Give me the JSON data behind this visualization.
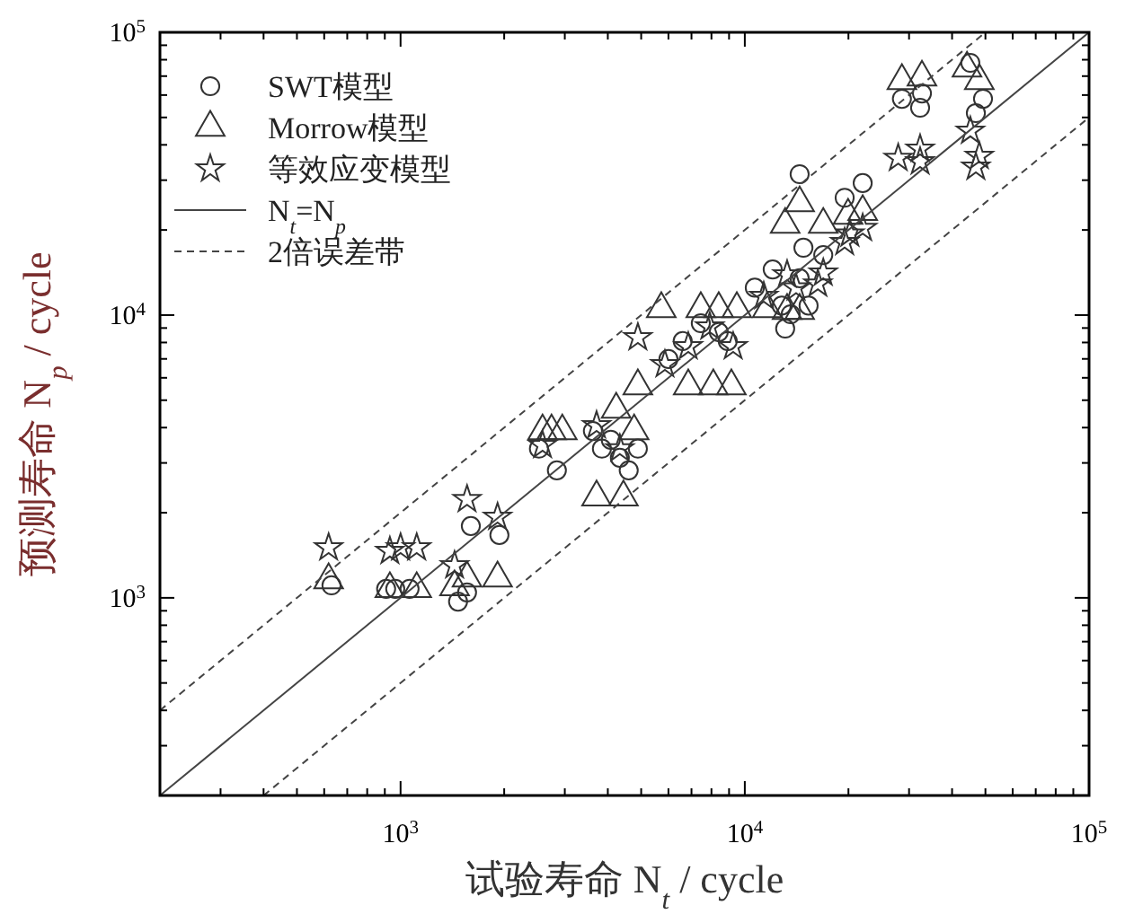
{
  "chart_data": {
    "type": "scatter",
    "xlabel": "试验寿命 N$_{t}$ / cycle",
    "ylabel": "预测寿命 N$_{p}$ / cycle",
    "log": "xy",
    "grid": false,
    "legend": "top left",
    "xlim": [
      200,
      100000
    ],
    "ylim": [
      200,
      100000
    ],
    "xticks": [
      {
        "value": 200,
        "label": null
      },
      {
        "value": 300,
        "label": null
      },
      {
        "value": 400,
        "label": null
      },
      {
        "value": 500,
        "label": null
      },
      {
        "value": 600,
        "label": null
      },
      {
        "value": 700,
        "label": null
      },
      {
        "value": 800,
        "label": null
      },
      {
        "value": 900,
        "label": null
      },
      {
        "value": 1000,
        "label": "10$^{3}$"
      },
      {
        "value": 2000,
        "label": null
      },
      {
        "value": 3000,
        "label": null
      },
      {
        "value": 4000,
        "label": null
      },
      {
        "value": 5000,
        "label": null
      },
      {
        "value": 6000,
        "label": null
      },
      {
        "value": 7000,
        "label": null
      },
      {
        "value": 8000,
        "label": null
      },
      {
        "value": 9000,
        "label": null
      },
      {
        "value": 10000,
        "label": "10$^{4}$"
      },
      {
        "value": 20000,
        "label": null
      },
      {
        "value": 30000,
        "label": null
      },
      {
        "value": 40000,
        "label": null
      },
      {
        "value": 50000,
        "label": null
      },
      {
        "value": 60000,
        "label": null
      },
      {
        "value": 70000,
        "label": null
      },
      {
        "value": 80000,
        "label": null
      },
      {
        "value": 90000,
        "label": null
      },
      {
        "value": 100000,
        "label": "10$^{5}$"
      }
    ],
    "yticks": [
      {
        "value": 200,
        "label": null
      },
      {
        "value": 300,
        "label": null
      },
      {
        "value": 400,
        "label": null
      },
      {
        "value": 500,
        "label": null
      },
      {
        "value": 600,
        "label": null
      },
      {
        "value": 700,
        "label": null
      },
      {
        "value": 800,
        "label": null
      },
      {
        "value": 900,
        "label": null
      },
      {
        "value": 1000,
        "label": "10$^{3}$"
      },
      {
        "value": 2000,
        "label": null
      },
      {
        "value": 3000,
        "label": null
      },
      {
        "value": 4000,
        "label": null
      },
      {
        "value": 5000,
        "label": null
      },
      {
        "value": 6000,
        "label": null
      },
      {
        "value": 7000,
        "label": null
      },
      {
        "value": 8000,
        "label": null
      },
      {
        "value": 9000,
        "label": null
      },
      {
        "value": 10000,
        "label": "10$^{4}$"
      },
      {
        "value": 20000,
        "label": null
      },
      {
        "value": 30000,
        "label": null
      },
      {
        "value": 40000,
        "label": null
      },
      {
        "value": 50000,
        "label": null
      },
      {
        "value": 60000,
        "label": null
      },
      {
        "value": 70000,
        "label": null
      },
      {
        "value": 80000,
        "label": null
      },
      {
        "value": 90000,
        "label": null
      },
      {
        "value": 100000,
        "label": "10$^{5}$"
      }
    ],
    "series": [
      {
        "name": "SWT模型",
        "type": "scatter",
        "marker": "circle",
        "color": "#333333",
        "x": [
          630,
          908,
          965,
          1062,
          1469,
          1560,
          1600,
          1937,
          2523,
          2845,
          3620,
          3845,
          4080,
          4335,
          4600,
          4890,
          6000,
          6600,
          7450,
          8400,
          8920,
          10690,
          12050,
          12800,
          13100,
          13590,
          14430,
          15320,
          14430,
          14800,
          16900,
          19500,
          22000,
          28600,
          32300,
          32700,
          45200,
          49200,
          46900
        ],
        "values": [
          1107,
          1076,
          1076,
          1076,
          970,
          1045,
          1795,
          1668,
          3370,
          2825,
          3890,
          3370,
          3620,
          3130,
          2825,
          3370,
          6990,
          8090,
          9360,
          8710,
          8090,
          12500,
          14500,
          10800,
          8960,
          10070,
          13500,
          10800,
          31500,
          17300,
          16300,
          26000,
          29300,
          58200,
          54100,
          60800,
          78000,
          58200,
          51800
        ]
      },
      {
        "name": "Morrow模型",
        "type": "scatter",
        "marker": "triangle",
        "color": "#333333",
        "x": [
          618,
          931,
          1114,
          1435,
          1560,
          1913,
          2585,
          2745,
          2950,
          3710,
          4440,
          4230,
          4770,
          5720,
          7450,
          8400,
          9480,
          11620,
          13270,
          14430,
          4890,
          6850,
          8100,
          9140,
          13100,
          14430,
          16900,
          19950,
          22000,
          28600,
          32700,
          44200,
          48000
        ],
        "values": [
          1157,
          1076,
          1076,
          1092,
          1174,
          1174,
          3890,
          3890,
          3890,
          2270,
          2270,
          4640,
          3890,
          10520,
          10520,
          10520,
          10520,
          10520,
          10370,
          10370,
          5610,
          5610,
          5610,
          5610,
          20900,
          24900,
          20900,
          22500,
          23200,
          67400,
          69300,
          74600,
          67400
        ]
      },
      {
        "name": "等效应变模型",
        "type": "scatter",
        "marker": "star",
        "color": "#333333",
        "x": [
          618,
          931,
          1000,
          1114,
          1435,
          1560,
          1913,
          2585,
          3710,
          4335,
          4890,
          5860,
          6850,
          7910,
          9250,
          11350,
          13270,
          14090,
          16300,
          16900,
          19500,
          20200,
          22000,
          27900,
          32300,
          32300,
          45200,
          48000,
          46900
        ],
        "values": [
          1505,
          1463,
          1505,
          1505,
          1301,
          2230,
          1930,
          3465,
          4070,
          3370,
          8330,
          6690,
          7740,
          9100,
          7740,
          11660,
          13900,
          12500,
          12900,
          14100,
          18100,
          19400,
          20300,
          35900,
          38700,
          34900,
          44800,
          36500,
          33400
        ]
      },
      {
        "name": "N$_{t}$=N$_{p}$",
        "type": "line",
        "marker": "none",
        "line_style": "solid",
        "color": "#444444",
        "x": [
          200,
          100000
        ],
        "values": [
          200,
          100000
        ]
      },
      {
        "name": "2倍误差带",
        "type": "line",
        "marker": "none",
        "line_style": "dashed",
        "color": "#444444",
        "x": [
          200,
          50000
        ],
        "values": [
          400,
          100000
        ]
      },
      {
        "type": "line",
        "marker": "none",
        "line_style": "dashed",
        "color": "#444444",
        "x": [
          400,
          100000
        ],
        "values": [
          200,
          50000
        ]
      }
    ]
  }
}
